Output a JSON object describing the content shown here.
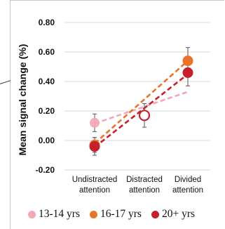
{
  "chart_data": {
    "type": "line",
    "categories": [
      "Undistracted attention",
      "Distracted attention",
      "Divided attention"
    ],
    "category_labels": [
      [
        "Undistracted",
        "attention"
      ],
      [
        "Distracted",
        "attention"
      ],
      [
        "Divided",
        "attention"
      ]
    ],
    "ylabel": "Mean signal change (%)",
    "ylim": [
      -0.2,
      0.8
    ],
    "yticks": [
      "0.80",
      "0.60",
      "0.40",
      "0.20",
      "0.00",
      "-0.20"
    ],
    "ytick_values": [
      0.8,
      0.6,
      0.4,
      0.2,
      0.0,
      -0.2
    ],
    "legend_position": "bottom",
    "series": [
      {
        "name": "13-14 yrs",
        "color": "#f4a7b4",
        "values": [
          0.12,
          null,
          null
        ],
        "error": [
          0.06,
          null,
          null
        ],
        "trend": [
          0.115,
          0.33
        ]
      },
      {
        "name": "16-17 yrs",
        "color": "#e8742a",
        "values": [
          -0.03,
          null,
          0.54
        ],
        "error": [
          0.05,
          null,
          0.09
        ],
        "trend": [
          -0.02,
          0.54
        ]
      },
      {
        "name": "20+ yrs",
        "color": "#c8202a",
        "values": [
          -0.04,
          0.17,
          0.46
        ],
        "error": [
          0.06,
          0.08,
          0.09
        ],
        "trend": [
          -0.045,
          0.45
        ]
      }
    ]
  }
}
